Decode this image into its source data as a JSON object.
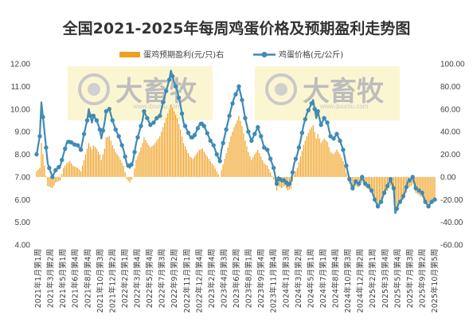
{
  "chart_data": {
    "type": "bar+line",
    "title": "全国2021-2025年每周鸡蛋价格及预期盈利走势图",
    "legend": [
      {
        "name": "蛋鸡预期盈利(元/只)右",
        "kind": "bar",
        "color": "#f0a020"
      },
      {
        "name": "鸡蛋价格(元/公斤)",
        "kind": "line",
        "color": "#3f8bb5"
      }
    ],
    "left_axis": {
      "min": 4.0,
      "max": 12.0,
      "step": 1.0,
      "decimals": 2
    },
    "right_axis": {
      "min": -60,
      "max": 100,
      "step": 20,
      "decimals": 2
    },
    "x_labels": [
      "2021年1月第1周",
      "2021年3月第2周",
      "2021年5月第1周",
      "2021年6月第4周",
      "2021年8月第4周",
      "2021年10月第3周",
      "2021年12月第2周",
      "2022年2月第1周",
      "2022年3月第4周",
      "2022年5月第4周",
      "2022年7月第3周",
      "2022年9月第2周",
      "2022年11月第1周",
      "2022年12月第4周",
      "2023年2月第4周",
      "2023年4月第3周",
      "2023年6月第2周",
      "2023年8月第1周",
      "2023年9月第4周",
      "2023年11月第4周",
      "2024年1月第3周",
      "2024年3月第2周",
      "2024年5月第1周",
      "2024年7月第1周",
      "2024年8月第4周",
      "2024年10月第3周",
      "2024年12月第2周",
      "2025年2月第1周",
      "2025年3月第4周",
      "2025年5月第4周",
      "2025年7月第3周",
      "2025年9月第2周",
      "2025年10月第5周"
    ],
    "weeks": 253,
    "price_keypoints": [
      [
        0,
        8.0
      ],
      [
        2,
        8.8
      ],
      [
        3,
        10.3
      ],
      [
        5,
        9.0
      ],
      [
        7,
        7.6
      ],
      [
        10,
        7.0
      ],
      [
        12,
        7.3
      ],
      [
        15,
        7.5
      ],
      [
        17,
        8.0
      ],
      [
        19,
        8.5
      ],
      [
        21,
        8.6
      ],
      [
        23,
        8.45
      ],
      [
        26,
        8.4
      ],
      [
        28,
        8.2
      ],
      [
        30,
        8.9
      ],
      [
        32,
        9.5
      ],
      [
        33,
        10.0
      ],
      [
        35,
        9.4
      ],
      [
        36,
        9.7
      ],
      [
        38,
        9.5
      ],
      [
        40,
        9.1
      ],
      [
        41,
        8.7
      ],
      [
        43,
        9.4
      ],
      [
        44,
        9.9
      ],
      [
        46,
        10.0
      ],
      [
        48,
        9.5
      ],
      [
        50,
        9.1
      ],
      [
        52,
        8.8
      ],
      [
        55,
        8.2
      ],
      [
        57,
        7.6
      ],
      [
        59,
        7.4
      ],
      [
        61,
        7.7
      ],
      [
        63,
        8.5
      ],
      [
        65,
        9.0
      ],
      [
        67,
        9.5
      ],
      [
        68,
        9.9
      ],
      [
        70,
        9.6
      ],
      [
        72,
        9.3
      ],
      [
        74,
        9.4
      ],
      [
        76,
        9.6
      ],
      [
        78,
        9.7
      ],
      [
        80,
        10.3
      ],
      [
        82,
        10.8
      ],
      [
        84,
        11.3
      ],
      [
        85,
        11.7
      ],
      [
        87,
        11.2
      ],
      [
        89,
        10.8
      ],
      [
        91,
        10.2
      ],
      [
        93,
        9.4
      ],
      [
        95,
        9.1
      ],
      [
        97,
        8.8
      ],
      [
        99,
        8.7
      ],
      [
        101,
        9.0
      ],
      [
        103,
        9.3
      ],
      [
        105,
        9.4
      ],
      [
        107,
        9.1
      ],
      [
        110,
        8.6
      ],
      [
        112,
        8.4
      ],
      [
        114,
        8.0
      ],
      [
        116,
        7.7
      ],
      [
        117,
        8.2
      ],
      [
        119,
        8.8
      ],
      [
        121,
        9.4
      ],
      [
        123,
        10.0
      ],
      [
        125,
        10.5
      ],
      [
        127,
        10.8
      ],
      [
        128,
        11.0
      ],
      [
        130,
        10.4
      ],
      [
        132,
        9.6
      ],
      [
        134,
        9.0
      ],
      [
        136,
        8.6
      ],
      [
        138,
        8.9
      ],
      [
        140,
        9.2
      ],
      [
        142,
        8.8
      ],
      [
        144,
        8.3
      ],
      [
        146,
        8.2
      ],
      [
        148,
        7.8
      ],
      [
        150,
        7.4
      ],
      [
        152,
        6.7
      ],
      [
        153,
        7.0
      ],
      [
        155,
        6.8
      ],
      [
        157,
        6.9
      ],
      [
        159,
        6.6
      ],
      [
        161,
        6.8
      ],
      [
        163,
        7.6
      ],
      [
        165,
        8.0
      ],
      [
        167,
        8.6
      ],
      [
        169,
        9.3
      ],
      [
        171,
        9.8
      ],
      [
        173,
        10.1
      ],
      [
        175,
        10.4
      ],
      [
        177,
        9.6
      ],
      [
        178,
        9.9
      ],
      [
        180,
        9.3
      ],
      [
        182,
        9.6
      ],
      [
        184,
        9.4
      ],
      [
        186,
        8.8
      ],
      [
        188,
        8.7
      ],
      [
        190,
        8.9
      ],
      [
        192,
        8.6
      ],
      [
        194,
        8.2
      ],
      [
        196,
        7.5
      ],
      [
        198,
        6.9
      ],
      [
        200,
        6.5
      ],
      [
        202,
        6.8
      ],
      [
        204,
        6.7
      ],
      [
        206,
        7.0
      ],
      [
        208,
        6.7
      ],
      [
        210,
        6.6
      ],
      [
        212,
        6.4
      ],
      [
        214,
        6.0
      ],
      [
        216,
        5.7
      ],
      [
        218,
        5.9
      ],
      [
        220,
        6.3
      ],
      [
        222,
        6.6
      ],
      [
        224,
        6.9
      ],
      [
        226,
        6.5
      ],
      [
        227,
        5.4
      ],
      [
        229,
        5.8
      ],
      [
        231,
        6.0
      ],
      [
        233,
        6.3
      ],
      [
        235,
        6.8
      ],
      [
        237,
        6.9
      ],
      [
        238,
        7.0
      ],
      [
        240,
        6.5
      ],
      [
        242,
        6.4
      ],
      [
        244,
        6.3
      ],
      [
        246,
        5.9
      ],
      [
        248,
        5.7
      ],
      [
        250,
        5.9
      ],
      [
        252,
        6.0
      ]
    ],
    "price_markers_every": 2,
    "profit_keypoints": [
      [
        0,
        5
      ],
      [
        2,
        8
      ],
      [
        3,
        30
      ],
      [
        5,
        10
      ],
      [
        7,
        -8
      ],
      [
        10,
        -10
      ],
      [
        12,
        -5
      ],
      [
        15,
        -3
      ],
      [
        17,
        8
      ],
      [
        19,
        12
      ],
      [
        21,
        14
      ],
      [
        23,
        10
      ],
      [
        26,
        8
      ],
      [
        28,
        5
      ],
      [
        30,
        15
      ],
      [
        32,
        25
      ],
      [
        33,
        30
      ],
      [
        35,
        24
      ],
      [
        36,
        28
      ],
      [
        38,
        25
      ],
      [
        40,
        20
      ],
      [
        41,
        15
      ],
      [
        43,
        25
      ],
      [
        44,
        35
      ],
      [
        46,
        36
      ],
      [
        48,
        28
      ],
      [
        50,
        22
      ],
      [
        52,
        18
      ],
      [
        55,
        10
      ],
      [
        57,
        -2
      ],
      [
        59,
        -5
      ],
      [
        61,
        0
      ],
      [
        63,
        15
      ],
      [
        65,
        22
      ],
      [
        67,
        30
      ],
      [
        68,
        35
      ],
      [
        70,
        30
      ],
      [
        72,
        26
      ],
      [
        74,
        28
      ],
      [
        76,
        32
      ],
      [
        78,
        36
      ],
      [
        80,
        44
      ],
      [
        82,
        52
      ],
      [
        84,
        60
      ],
      [
        85,
        64
      ],
      [
        87,
        58
      ],
      [
        89,
        52
      ],
      [
        91,
        42
      ],
      [
        93,
        30
      ],
      [
        95,
        24
      ],
      [
        97,
        18
      ],
      [
        99,
        16
      ],
      [
        101,
        20
      ],
      [
        103,
        24
      ],
      [
        105,
        25
      ],
      [
        107,
        20
      ],
      [
        110,
        14
      ],
      [
        112,
        10
      ],
      [
        114,
        5
      ],
      [
        116,
        0
      ],
      [
        117,
        6
      ],
      [
        119,
        16
      ],
      [
        121,
        26
      ],
      [
        123,
        36
      ],
      [
        125,
        44
      ],
      [
        127,
        50
      ],
      [
        128,
        54
      ],
      [
        130,
        45
      ],
      [
        132,
        32
      ],
      [
        134,
        22
      ],
      [
        136,
        15
      ],
      [
        138,
        20
      ],
      [
        140,
        24
      ],
      [
        142,
        18
      ],
      [
        144,
        12
      ],
      [
        146,
        10
      ],
      [
        148,
        4
      ],
      [
        150,
        -2
      ],
      [
        152,
        -12
      ],
      [
        153,
        -8
      ],
      [
        155,
        -10
      ],
      [
        157,
        -8
      ],
      [
        159,
        -12
      ],
      [
        161,
        -10
      ],
      [
        163,
        2
      ],
      [
        165,
        8
      ],
      [
        167,
        18
      ],
      [
        169,
        28
      ],
      [
        171,
        36
      ],
      [
        173,
        42
      ],
      [
        175,
        46
      ],
      [
        177,
        34
      ],
      [
        178,
        38
      ],
      [
        180,
        30
      ],
      [
        182,
        34
      ],
      [
        184,
        31
      ],
      [
        186,
        22
      ],
      [
        188,
        20
      ],
      [
        190,
        24
      ],
      [
        192,
        20
      ],
      [
        194,
        14
      ],
      [
        196,
        4
      ],
      [
        198,
        -6
      ],
      [
        200,
        -12
      ],
      [
        202,
        -8
      ],
      [
        204,
        -9
      ],
      [
        206,
        -5
      ],
      [
        208,
        -9
      ],
      [
        210,
        -11
      ],
      [
        212,
        -14
      ],
      [
        214,
        -20
      ],
      [
        216,
        -25
      ],
      [
        218,
        -22
      ],
      [
        220,
        -16
      ],
      [
        222,
        -12
      ],
      [
        224,
        -8
      ],
      [
        226,
        -14
      ],
      [
        227,
        -32
      ],
      [
        229,
        -26
      ],
      [
        231,
        -22
      ],
      [
        233,
        -18
      ],
      [
        235,
        -10
      ],
      [
        237,
        -8
      ],
      [
        238,
        -6
      ],
      [
        240,
        -14
      ],
      [
        242,
        -16
      ],
      [
        244,
        -18
      ],
      [
        246,
        -24
      ],
      [
        248,
        -27
      ],
      [
        250,
        -24
      ],
      [
        252,
        -22
      ]
    ]
  },
  "watermark": {
    "brand": "大畜牧",
    "url": "www.dxumu.com",
    "panel_color": "#fbf6d2",
    "panels": 3
  }
}
